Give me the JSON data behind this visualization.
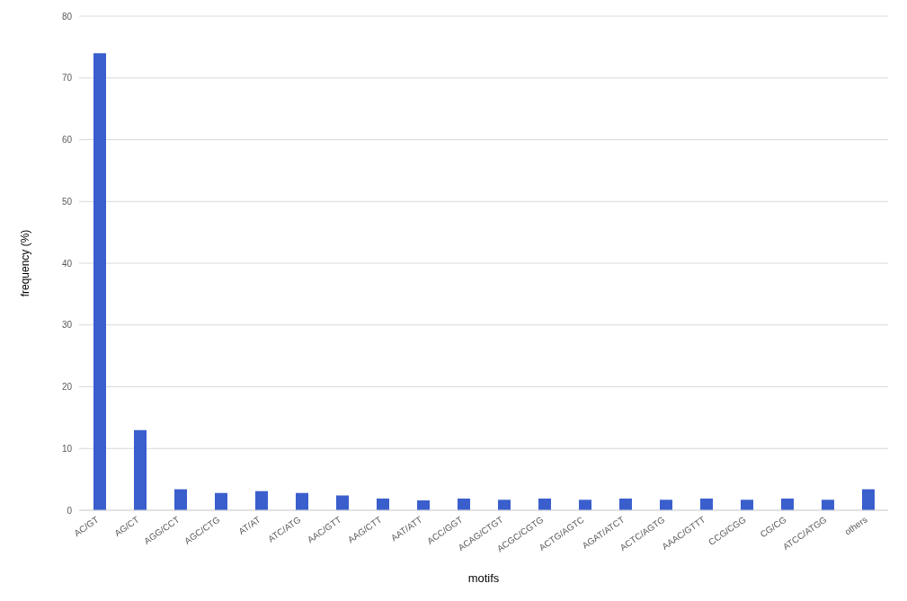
{
  "chart_data": {
    "type": "bar",
    "xlabel": "motifs",
    "ylabel": "frequency (%)",
    "categories": [
      "AC/GT",
      "AG/CT",
      "AGG/CCT",
      "AGC/CTG",
      "AT/AT",
      "ATC/ATG",
      "AAC/GTT",
      "AAG/CTT",
      "AAT/ATT",
      "ACC/GGT",
      "ACAG/CTGT",
      "ACGC/CGTG",
      "ACTG/AGTC",
      "AGAT/ATCT",
      "ACTC/AGTG",
      "AAAC/GTTT",
      "CCG/CGG",
      "CG/CG",
      "ATCC/ATGG",
      "others"
    ],
    "values": [
      74,
      13,
      3.4,
      2.8,
      3.1,
      2.8,
      2.4,
      1.9,
      1.6,
      1.9,
      1.7,
      1.9,
      1.7,
      1.9,
      1.7,
      1.9,
      1.7,
      1.9,
      1.7,
      3.4
    ],
    "color": "#3a5fcd",
    "ylim": [
      0,
      80
    ],
    "yticks": [
      0,
      10,
      20,
      30,
      40,
      50,
      60,
      70,
      80
    ],
    "grid": "y"
  }
}
